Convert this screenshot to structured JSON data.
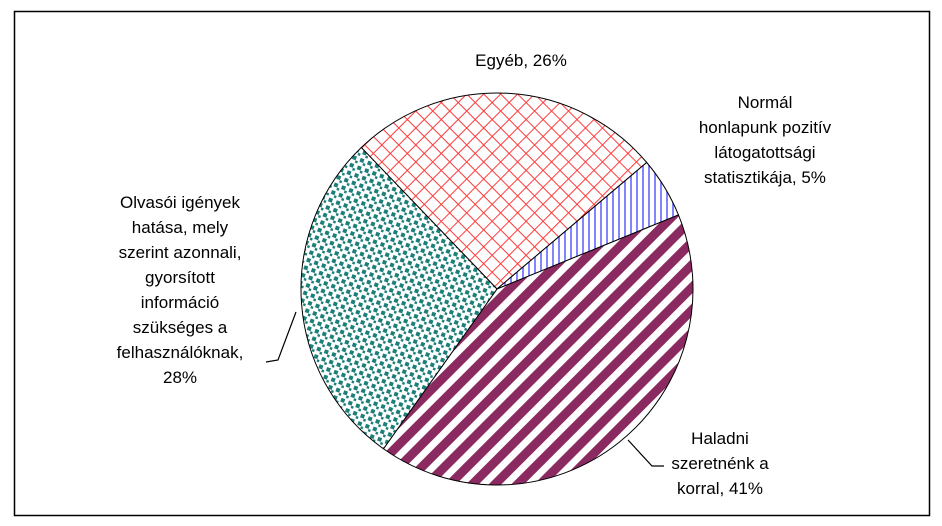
{
  "chart_data": {
    "type": "pie",
    "values": [
      26,
      5,
      41,
      28
    ],
    "value_labels": [
      "Egyéb, 26%",
      "Normál\nhonlapunk pozitív\nlátogatottsági\nstatisztikája, 5%",
      "Haladni\nszeretnénk a\nkorral, 41%",
      "Olvasói igények\nhatása, mely\nszerint azonnali,\ngyorsított\ninformáció\nszükséges a\nfelhasználóknak,\n28%"
    ],
    "colors": [
      "#ff3b3b",
      "#5a5aff",
      "#8a2a60",
      "#1d7f7a"
    ]
  }
}
